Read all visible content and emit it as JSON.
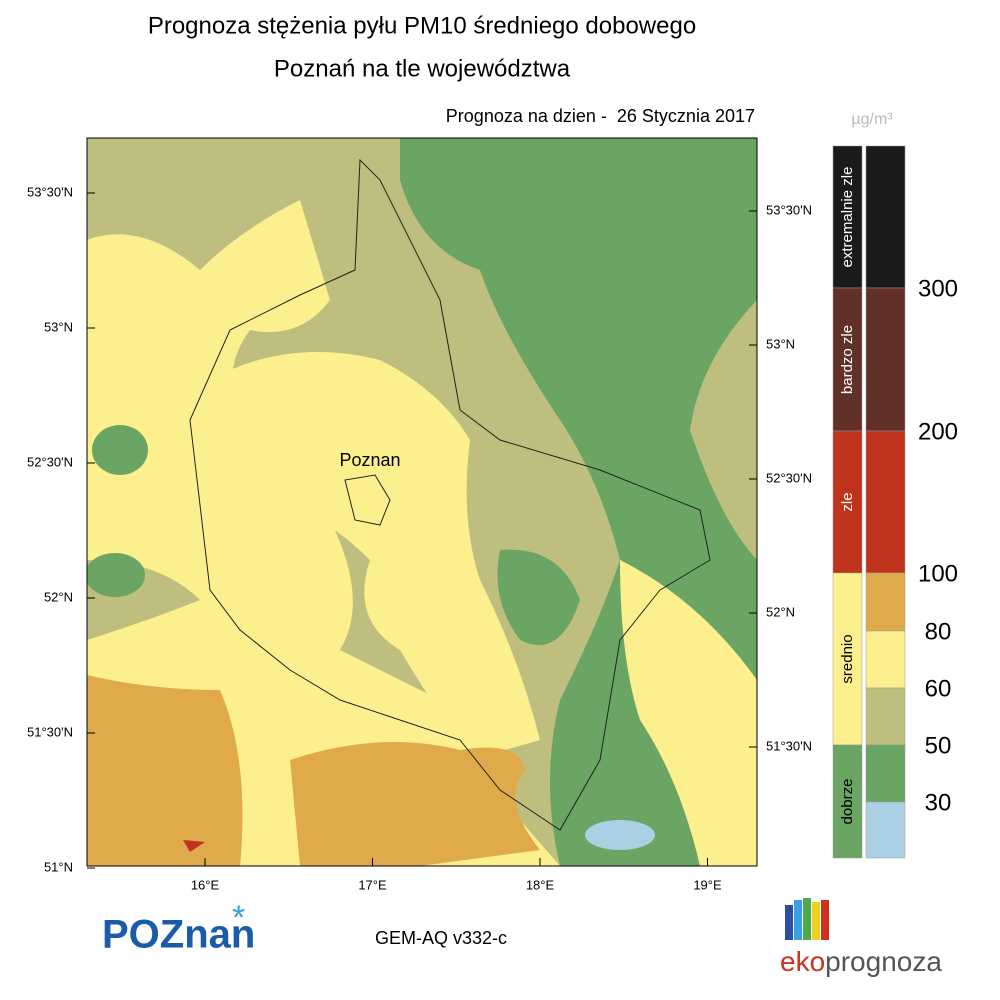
{
  "header": {
    "title": "Prognoza stężenia pyłu PM10 średniego dobowego",
    "subtitle": "Poznań na tle województwa",
    "date": "Prognoza na dzien -  26 Stycznia 2017"
  },
  "map": {
    "lat_labels_left": [
      "53°30'N",
      "53°N",
      "52°30'N",
      "52°N",
      "51°30'N",
      "51°N"
    ],
    "lat_labels_right": [
      "53°30'N",
      "53°N",
      "52°30'N",
      "52°N",
      "51°30'N"
    ],
    "lon_labels": [
      "16°E",
      "17°E",
      "18°E",
      "19°E"
    ],
    "city": "Poznan"
  },
  "legend": {
    "unit": "µg/m³",
    "classes": [
      {
        "label": "extremalnie zle",
        "color": "#1b1b19"
      },
      {
        "label": "bardzo zle",
        "color": "#613029"
      },
      {
        "label": "zle",
        "color": "#bf331c"
      },
      {
        "label": "srednio",
        "color": "#fcf08e"
      },
      {
        "label": "dobrze",
        "color": "#6aa563"
      }
    ],
    "bins": [
      "#1b1b19",
      "#613029",
      "#bf331c",
      "#e0a94a",
      "#fcf08e",
      "#bebe7e",
      "#6aa563",
      "#aad1e3"
    ],
    "ticks": [
      300,
      200,
      100,
      80,
      60,
      50,
      30
    ]
  },
  "footer": {
    "model": "GEM-AQ v332-c",
    "logo_left": "POZnan",
    "logo_right_1": "eko",
    "logo_right_2": "prognoza"
  }
}
